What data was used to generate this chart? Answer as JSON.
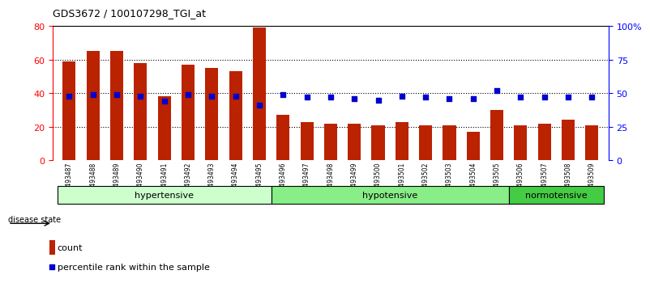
{
  "title": "GDS3672 / 100107298_TGI_at",
  "samples": [
    "GSM493487",
    "GSM493488",
    "GSM493489",
    "GSM493490",
    "GSM493491",
    "GSM493492",
    "GSM493493",
    "GSM493494",
    "GSM493495",
    "GSM493496",
    "GSM493497",
    "GSM493498",
    "GSM493499",
    "GSM493500",
    "GSM493501",
    "GSM493502",
    "GSM493503",
    "GSM493504",
    "GSM493505",
    "GSM493506",
    "GSM493507",
    "GSM493508",
    "GSM493509"
  ],
  "counts": [
    59,
    65,
    65,
    58,
    38,
    57,
    55,
    53,
    79,
    27,
    23,
    22,
    22,
    21,
    23,
    21,
    21,
    17,
    30,
    21,
    22,
    24,
    21
  ],
  "percentiles": [
    48,
    49,
    49,
    48,
    44,
    49,
    48,
    48,
    41,
    49,
    47,
    47,
    46,
    45,
    48,
    47,
    46,
    46,
    52,
    47,
    47,
    47,
    47
  ],
  "groups": [
    {
      "label": "hypertensive",
      "start": 0,
      "end": 9,
      "color": "#ccffcc"
    },
    {
      "label": "hypotensive",
      "start": 9,
      "end": 19,
      "color": "#88ee88"
    },
    {
      "label": "normotensive",
      "start": 19,
      "end": 23,
      "color": "#44cc44"
    }
  ],
  "bar_color": "#bb2200",
  "dot_color": "#0000cc",
  "left_ylim": [
    0,
    80
  ],
  "right_ylim": [
    0,
    100
  ],
  "left_yticks": [
    0,
    20,
    40,
    60,
    80
  ],
  "right_yticks": [
    0,
    25,
    50,
    75,
    100
  ],
  "right_yticklabels": [
    "0",
    "25",
    "50",
    "75",
    "100%"
  ],
  "grid_values": [
    20,
    40,
    60
  ],
  "background_color": "#ffffff"
}
